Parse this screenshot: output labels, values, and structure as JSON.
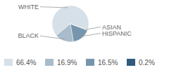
{
  "chart_data": {
    "type": "pie",
    "categories": [
      "WHITE",
      "BLACK",
      "HISPANIC",
      "ASIAN"
    ],
    "values": [
      66.4,
      16.9,
      16.5,
      0.2
    ],
    "value_labels": [
      "66.4%",
      "16.9%",
      "16.5%",
      "0.2%"
    ],
    "colors": [
      "#d5e0e8",
      "#a9bccb",
      "#7796ad",
      "#2e5b7e"
    ],
    "legend": "bottom"
  }
}
